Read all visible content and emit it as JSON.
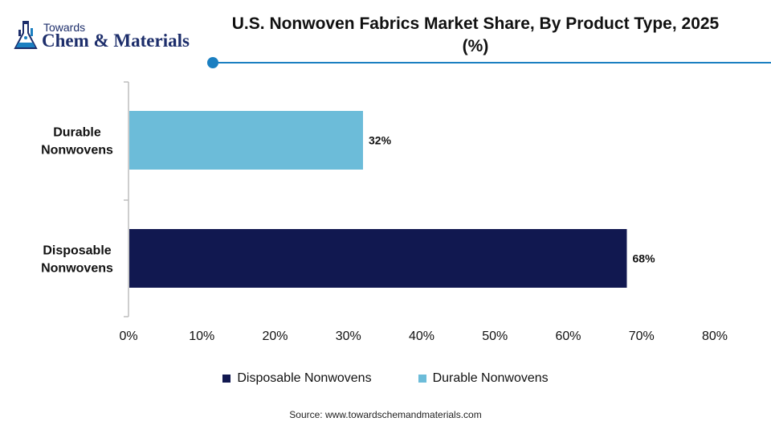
{
  "logo": {
    "line1": "Towards",
    "line2": "Chem & Materials"
  },
  "title": "U.S. Nonwoven Fabrics Market Share, By Product Type, 2025 (%)",
  "source": "Source: www.towardschemandmaterials.com",
  "colors": {
    "accent": "#1b7fc1",
    "disposable": "#111850",
    "durable": "#6cbcd9"
  },
  "chart_data": {
    "type": "bar",
    "orientation": "horizontal",
    "categories": [
      "Durable Nonwovens",
      "Disposable Nonwovens"
    ],
    "category_label_lines": [
      [
        "Durable",
        "Nonwovens"
      ],
      [
        "Disposable",
        "Nonwovens"
      ]
    ],
    "values": [
      32,
      68
    ],
    "data_labels": [
      "32%",
      "68%"
    ],
    "bar_colors": [
      "#6cbcd9",
      "#111850"
    ],
    "xlim": [
      0,
      80
    ],
    "x_ticks": [
      0,
      10,
      20,
      30,
      40,
      50,
      60,
      70,
      80
    ],
    "x_tick_labels": [
      "0%",
      "10%",
      "20%",
      "30%",
      "40%",
      "50%",
      "60%",
      "70%",
      "80%"
    ],
    "grid": false,
    "legend_position": "bottom",
    "legend": [
      {
        "label": "Disposable Nonwovens",
        "color": "#111850"
      },
      {
        "label": "Durable Nonwovens",
        "color": "#6cbcd9"
      }
    ]
  }
}
